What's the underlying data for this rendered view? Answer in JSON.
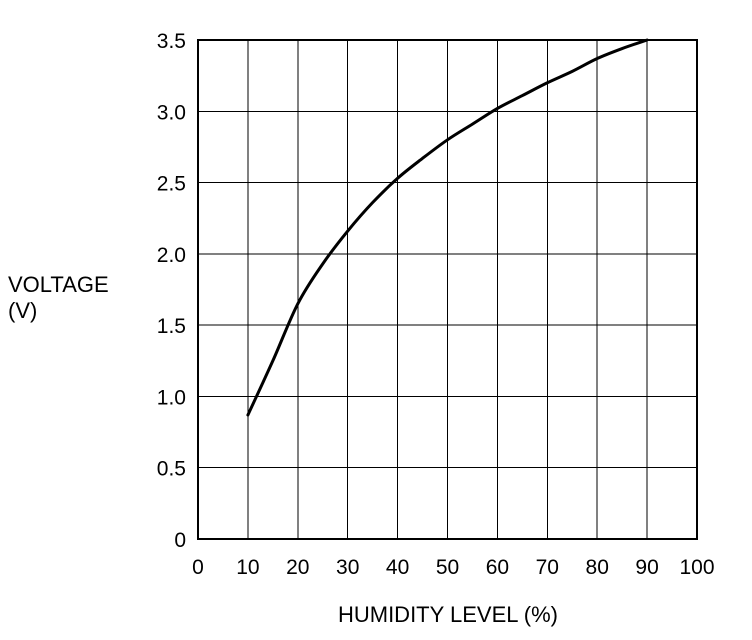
{
  "chart_data": {
    "type": "line",
    "title": "",
    "xlabel": "HUMIDITY LEVEL (%)",
    "ylabel_lines": [
      "VOLTAGE",
      "(V)"
    ],
    "xlim": [
      0,
      100
    ],
    "ylim": [
      0,
      3.5
    ],
    "x_ticks": [
      "0",
      "10",
      "20",
      "30",
      "40",
      "50",
      "60",
      "70",
      "80",
      "90",
      "100"
    ],
    "y_ticks": [
      "0",
      "0.5",
      "1.0",
      "1.5",
      "2.0",
      "2.5",
      "3.0",
      "3.5"
    ],
    "grid": true,
    "series": [
      {
        "x": [
          10,
          15,
          20,
          25,
          30,
          35,
          40,
          45,
          50,
          55,
          60,
          65,
          70,
          75,
          80,
          85,
          90
        ],
        "y": [
          0.87,
          1.25,
          1.65,
          1.93,
          2.16,
          2.36,
          2.53,
          2.67,
          2.8,
          2.91,
          3.02,
          3.11,
          3.2,
          3.28,
          3.37,
          3.44,
          3.5
        ]
      }
    ],
    "colors": {
      "line": "#000000",
      "grid": "#000000",
      "background": "#ffffff"
    }
  }
}
